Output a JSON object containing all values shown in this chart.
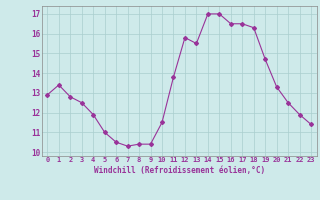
{
  "x": [
    0,
    1,
    2,
    3,
    4,
    5,
    6,
    7,
    8,
    9,
    10,
    11,
    12,
    13,
    14,
    15,
    16,
    17,
    18,
    19,
    20,
    21,
    22,
    23
  ],
  "y": [
    12.9,
    13.4,
    12.8,
    12.5,
    11.9,
    11.0,
    10.5,
    10.3,
    10.4,
    10.4,
    11.5,
    13.8,
    15.8,
    15.5,
    17.0,
    17.0,
    16.5,
    16.5,
    16.3,
    14.7,
    13.3,
    12.5,
    11.9,
    11.4
  ],
  "line_color": "#993399",
  "marker": "D",
  "marker_size": 2,
  "bg_color": "#ceeaea",
  "grid_color": "#aacece",
  "xlabel": "Windchill (Refroidissement éolien,°C)",
  "xlabel_color": "#993399",
  "tick_color": "#993399",
  "ylim": [
    9.8,
    17.4
  ],
  "yticks": [
    10,
    11,
    12,
    13,
    14,
    15,
    16,
    17
  ],
  "xlim": [
    -0.5,
    23.5
  ],
  "xticks": [
    0,
    1,
    2,
    3,
    4,
    5,
    6,
    7,
    8,
    9,
    10,
    11,
    12,
    13,
    14,
    15,
    16,
    17,
    18,
    19,
    20,
    21,
    22,
    23
  ]
}
